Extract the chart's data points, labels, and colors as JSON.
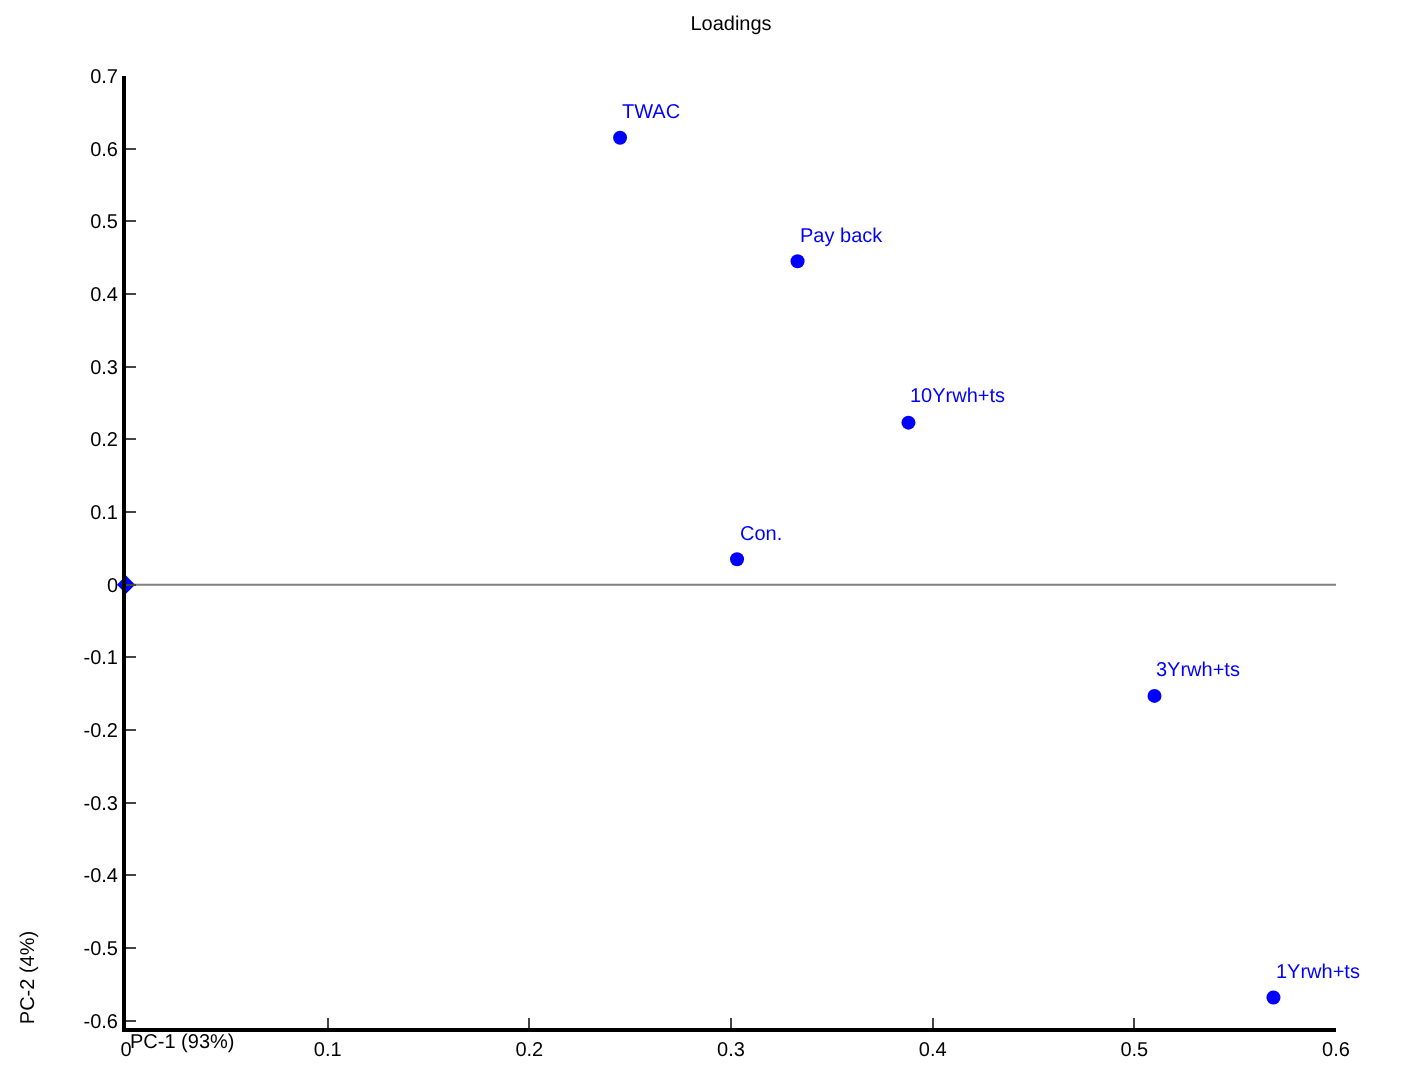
{
  "chart_data": {
    "type": "scatter",
    "title": "Loadings",
    "xlabel": "PC-1 (93%)",
    "ylabel": "PC-2 (4%)",
    "series": [
      {
        "color": "#0000ff",
        "marker": "circle",
        "x": [
          0.245,
          0.333,
          0.388,
          0.303,
          0.51,
          0.569
        ],
        "values": [
          0.615,
          0.445,
          0.223,
          0.035,
          -0.153,
          -0.568
        ]
      },
      {
        "color": "#0000ff",
        "marker": "diamond",
        "x": [
          0
        ],
        "values": [
          0
        ]
      }
    ],
    "annotations": [
      {
        "text": "TWAC",
        "x": 0.245,
        "y": 0.615
      },
      {
        "text": "Pay back",
        "x": 0.333,
        "y": 0.445
      },
      {
        "text": "10Yrwh+ts",
        "x": 0.388,
        "y": 0.223
      },
      {
        "text": "Con.",
        "x": 0.303,
        "y": 0.035
      },
      {
        "text": "3Yrwh+ts",
        "x": 0.51,
        "y": -0.153
      },
      {
        "text": "1Yrwh+ts",
        "x": 0.569,
        "y": -0.568
      }
    ],
    "ref_lines": [
      {
        "axis": "y",
        "value": 0,
        "color": "#808080"
      }
    ],
    "xlim": [
      0,
      0.6
    ],
    "xticks": [
      0,
      0.1,
      0.2,
      0.3,
      0.4,
      0.5,
      0.6
    ],
    "ylim": [
      -0.61,
      0.7
    ],
    "yticks": [
      -0.6,
      -0.5,
      -0.4,
      -0.3,
      -0.2,
      -0.1,
      0,
      0.1,
      0.2,
      0.3,
      0.4,
      0.5,
      0.6,
      0.7
    ],
    "grid": false
  }
}
